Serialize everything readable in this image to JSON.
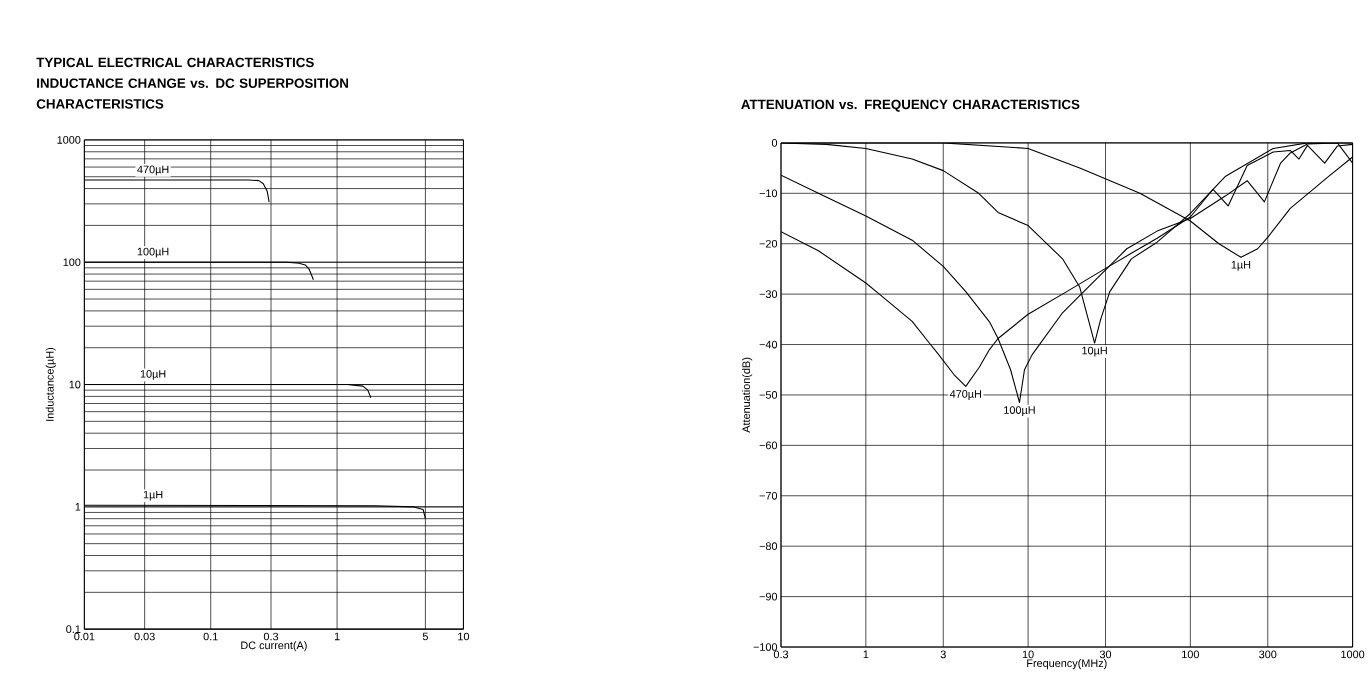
{
  "chart_data": [
    {
      "type": "line",
      "title": "TYPICAL ELECTRICAL CHARACTERISTICS",
      "subtitle": "INDUCTANCE CHANGE vs. DC SUPERPOSITION CHARACTERISTICS",
      "xlabel": "DC current(A)",
      "ylabel": "Inductance(µH)",
      "log": "xy",
      "grid": true,
      "xlim": [
        0.01,
        10
      ],
      "ylim": [
        0.1,
        1000
      ],
      "xticks": [
        0.01,
        0.03,
        0.1,
        0.3,
        1,
        5,
        10
      ],
      "yticks": [
        0.1,
        1,
        10,
        100,
        1000
      ],
      "series": [
        {
          "name": "470µH",
          "color": "#000000",
          "x": [
            0.01,
            0.2,
            0.24,
            0.26,
            0.28,
            0.29
          ],
          "values": [
            470,
            470,
            465,
            440,
            380,
            310
          ]
        },
        {
          "name": "100µH",
          "color": "#000000",
          "x": [
            0.01,
            0.4,
            0.5,
            0.56,
            0.6,
            0.65
          ],
          "values": [
            100,
            100,
            98,
            95,
            88,
            72
          ]
        },
        {
          "name": "10µH",
          "color": "#000000",
          "x": [
            0.01,
            1.2,
            1.6,
            1.75,
            1.85
          ],
          "values": [
            10,
            10,
            9.7,
            9,
            7.8
          ]
        },
        {
          "name": "1µH",
          "color": "#000000",
          "x": [
            0.01,
            2,
            4,
            4.8,
            5
          ],
          "values": [
            1.03,
            1.02,
            1,
            0.95,
            0.8
          ]
        }
      ]
    },
    {
      "type": "line",
      "title": "ATTENUATION vs. FREQUENCY CHARACTERISTICS",
      "xlabel": "Frequency(MHz)",
      "ylabel": "Attenuation(dB)",
      "log": "x",
      "grid": true,
      "xlim": [
        0.3,
        1000
      ],
      "ylim": [
        -100,
        0
      ],
      "xticks": [
        0.3,
        1,
        3,
        10,
        30,
        100,
        300,
        1000
      ],
      "yticks": [
        {
          "value": -100,
          "label": "−100"
        },
        {
          "value": -90,
          "label": "−90"
        },
        {
          "value": -80,
          "label": "−80"
        },
        {
          "value": -70,
          "label": "−70"
        },
        {
          "value": -60,
          "label": "−60"
        },
        {
          "value": -50,
          "label": "−50"
        },
        {
          "value": -40,
          "label": "−40"
        },
        {
          "value": -30,
          "label": "−30"
        },
        {
          "value": -20,
          "label": "−20"
        },
        {
          "value": -10,
          "label": "−10"
        },
        0
      ],
      "series": [
        {
          "name": "470µH",
          "color": "#000000",
          "x": [
            0.3,
            0.51,
            1.0,
            1.18,
            1.93,
            2.46,
            2.78,
            3.5,
            4.13,
            5.0,
            5.78,
            6.53,
            10,
            17.3,
            31.9,
            43.3,
            62.4,
            100,
            138,
            171,
            224,
            324,
            413,
            467,
            527,
            673,
            807,
            1000
          ],
          "values": [
            -17.6,
            -21.4,
            -27.8,
            -29.7,
            -35.4,
            -39.7,
            -41.8,
            -46,
            -48.3,
            -44.5,
            -41,
            -38.8,
            -34,
            -29.5,
            -24.4,
            -21.9,
            -18.9,
            -14.7,
            -9.2,
            -12.5,
            -4.5,
            -1.8,
            -1.5,
            -3.2,
            -0.5,
            -4,
            -0.6,
            -0.3
          ]
        },
        {
          "name": "100µH",
          "color": "#000000",
          "x": [
            0.3,
            0.51,
            1.0,
            1.93,
            3.0,
            4.13,
            5.78,
            6.53,
            7.8,
            8.85,
            9.5,
            10.6,
            16.3,
            20.8,
            40.6,
            62.4,
            100,
            165,
            224,
            286,
            360,
            413,
            527,
            807,
            1000
          ],
          "values": [
            -6.4,
            -10,
            -14.5,
            -19.3,
            -24.5,
            -29.5,
            -35.5,
            -38.8,
            -45,
            -51.5,
            -45,
            -42,
            -33.7,
            -30.3,
            -21,
            -17.5,
            -15,
            -10.5,
            -7.5,
            -11.7,
            -4,
            -2,
            -0.2,
            0,
            -4
          ]
        },
        {
          "name": "10µH",
          "color": "#000000",
          "x": [
            0.3,
            0.57,
            1.0,
            1.93,
            3.0,
            4.96,
            6.53,
            10,
            16.3,
            20.8,
            23.5,
            25.7,
            28,
            31.9,
            43.3,
            62.4,
            100,
            165,
            324,
            527,
            1000
          ],
          "values": [
            0,
            -0.3,
            -1.1,
            -3.2,
            -5.5,
            -10,
            -13.8,
            -16.4,
            -23,
            -28.6,
            -35,
            -39.7,
            -35,
            -29.5,
            -23,
            -19.7,
            -14,
            -6.6,
            -1.1,
            0,
            0
          ]
        },
        {
          "name": "1µH",
          "color": "#000000",
          "x": [
            0.3,
            3,
            10,
            20.8,
            48.9,
            100,
            150,
            205,
            260,
            304,
            413,
            715,
            1000
          ],
          "values": [
            0,
            0,
            -1.1,
            -5,
            -10,
            -15.5,
            -20,
            -22.7,
            -21,
            -18.5,
            -13,
            -6.6,
            -2.8
          ]
        }
      ]
    }
  ]
}
